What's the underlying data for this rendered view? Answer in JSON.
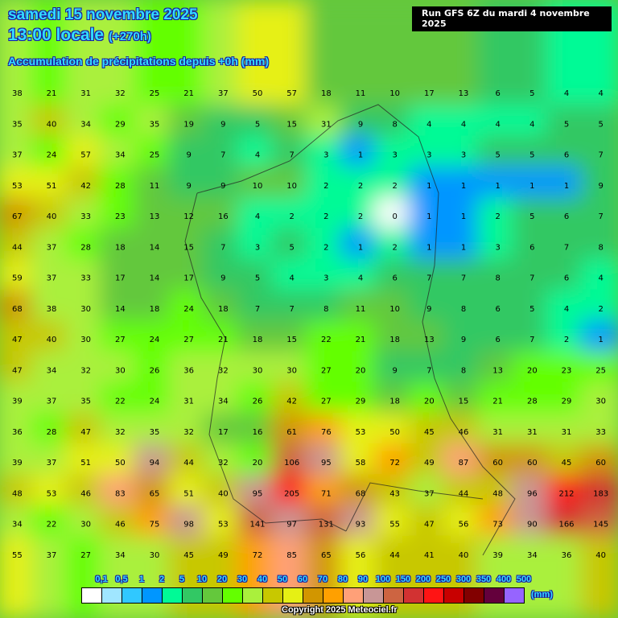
{
  "header": {
    "date": "samedi 15 novembre 2025",
    "time": "13:00 locale",
    "offset": "(+270h)",
    "subtitle": "Accumulation de précipitations depuis +0h (mm)",
    "run": "Run GFS 6Z du mardi 4 novembre 2025"
  },
  "legend": {
    "unit": "(mm)",
    "labels": [
      "0,1",
      "0,5",
      "1",
      "2",
      "5",
      "10",
      "20",
      "30",
      "40",
      "50",
      "60",
      "70",
      "80",
      "90",
      "100",
      "150",
      "200",
      "250",
      "300",
      "350",
      "400",
      "500"
    ],
    "colors": [
      "#ffffff",
      "#a0e6ff",
      "#30c8ff",
      "#0096ff",
      "#00fa96",
      "#32c864",
      "#64c83c",
      "#64ff00",
      "#aaf03c",
      "#c8c800",
      "#e6f014",
      "#d29600",
      "#ffa000",
      "#ffa078",
      "#c89696",
      "#cd6441",
      "#d23232",
      "#ff1414",
      "#c80000",
      "#820000",
      "#64003c",
      "#9664ff"
    ]
  },
  "copyright": "Copyright 2025 Meteociel.fr",
  "precip_grid": [
    [
      38,
      21,
      31,
      32,
      25,
      21,
      37,
      50,
      57,
      18,
      11,
      10,
      17,
      13,
      6,
      5,
      4,
      4
    ],
    [
      35,
      40,
      34,
      29,
      35,
      19,
      9,
      5,
      15,
      31,
      9,
      8,
      4,
      4,
      4,
      4,
      5,
      5
    ],
    [
      37,
      24,
      57,
      34,
      25,
      9,
      7,
      4,
      7,
      3,
      1,
      3,
      3,
      3,
      5,
      5,
      6,
      7
    ],
    [
      53,
      51,
      42,
      28,
      11,
      9,
      9,
      10,
      10,
      2,
      2,
      2,
      1,
      1,
      1,
      1,
      1,
      9
    ],
    [
      67,
      40,
      33,
      23,
      13,
      12,
      16,
      4,
      2,
      2,
      2,
      0,
      1,
      1,
      2,
      5,
      6,
      7
    ],
    [
      44,
      37,
      28,
      18,
      14,
      15,
      7,
      3,
      5,
      2,
      1,
      2,
      1,
      1,
      3,
      6,
      7,
      8
    ],
    [
      59,
      37,
      33,
      17,
      14,
      17,
      9,
      5,
      4,
      3,
      4,
      6,
      7,
      7,
      8,
      7,
      6,
      4
    ],
    [
      68,
      38,
      30,
      14,
      18,
      24,
      18,
      7,
      7,
      8,
      11,
      10,
      9,
      8,
      6,
      5,
      4,
      2
    ],
    [
      47,
      40,
      30,
      27,
      24,
      27,
      21,
      18,
      15,
      22,
      21,
      18,
      13,
      9,
      6,
      7,
      2,
      1
    ],
    [
      47,
      34,
      32,
      30,
      26,
      36,
      32,
      30,
      30,
      27,
      20,
      9,
      7,
      8,
      13,
      20,
      23,
      25
    ],
    [
      39,
      37,
      35,
      22,
      24,
      31,
      34,
      26,
      42,
      27,
      29,
      18,
      20,
      15,
      21,
      28,
      29,
      30
    ],
    [
      36,
      28,
      47,
      32,
      35,
      32,
      17,
      16,
      61,
      76,
      53,
      50,
      45,
      46,
      31,
      31,
      31,
      33
    ],
    [
      39,
      37,
      51,
      50,
      94,
      44,
      32,
      20,
      106,
      95,
      58,
      72,
      49,
      87,
      60,
      60,
      45,
      60
    ],
    [
      48,
      53,
      46,
      83,
      65,
      51,
      40,
      95,
      205,
      71,
      68,
      43,
      37,
      44,
      48,
      96,
      212,
      183
    ],
    [
      34,
      22,
      30,
      46,
      75,
      98,
      53,
      141,
      97,
      131,
      93,
      55,
      47,
      56,
      73,
      90,
      166,
      145
    ],
    [
      55,
      37,
      27,
      34,
      30,
      45,
      49,
      72,
      85,
      65,
      56,
      44,
      41,
      40,
      39,
      34,
      36,
      40
    ]
  ]
}
